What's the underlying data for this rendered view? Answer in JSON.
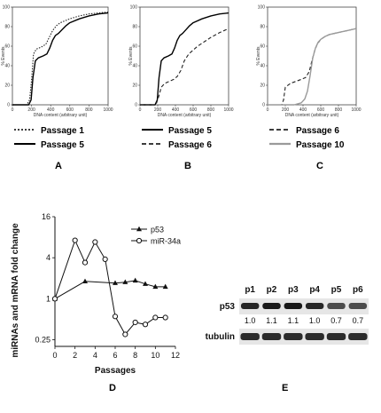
{
  "figure": {
    "panel_letters": [
      "A",
      "B",
      "C",
      "D",
      "E"
    ]
  },
  "chart_data": [
    {
      "panel": "A",
      "type": "line",
      "xlabel": "DNA content (arbitrary unit)",
      "ylabel": "% Events",
      "xlim": [
        0,
        1000
      ],
      "ylim": [
        0,
        100
      ],
      "xticks": [
        0,
        200,
        400,
        600,
        800,
        1000
      ],
      "yticks": [
        0,
        20,
        40,
        60,
        80,
        100
      ],
      "series": [
        {
          "name": "Passage 1",
          "style": "dotted",
          "color": "#222222",
          "x": [
            0,
            150,
            180,
            200,
            220,
            250,
            300,
            350,
            380,
            420,
            460,
            500,
            550,
            600,
            700,
            800,
            900,
            1000
          ],
          "y": [
            0,
            0,
            5,
            25,
            52,
            57,
            59,
            62,
            68,
            76,
            81,
            84,
            86,
            88,
            91,
            93,
            94,
            95
          ]
        },
        {
          "name": "Passage 5",
          "style": "solid",
          "color": "#000000",
          "x": [
            0,
            170,
            195,
            215,
            240,
            270,
            320,
            360,
            390,
            420,
            450,
            480,
            520,
            560,
            600,
            700,
            800,
            900,
            1000
          ],
          "y": [
            0,
            0,
            5,
            28,
            45,
            48,
            50,
            52,
            58,
            66,
            71,
            73,
            77,
            81,
            84,
            88,
            91,
            93,
            94
          ]
        }
      ]
    },
    {
      "panel": "B",
      "type": "line",
      "xlabel": "DNA content (arbitrary unit)",
      "ylabel": "% Events",
      "xlim": [
        0,
        1000
      ],
      "ylim": [
        0,
        100
      ],
      "xticks": [
        0,
        200,
        400,
        600,
        800,
        1000
      ],
      "yticks": [
        0,
        20,
        40,
        60,
        80,
        100
      ],
      "series": [
        {
          "name": "Passage 5",
          "style": "solid",
          "color": "#000000",
          "x": [
            0,
            170,
            195,
            215,
            240,
            270,
            320,
            360,
            390,
            420,
            450,
            480,
            520,
            560,
            600,
            700,
            800,
            900,
            1000
          ],
          "y": [
            0,
            0,
            5,
            28,
            45,
            48,
            50,
            52,
            58,
            66,
            71,
            73,
            77,
            81,
            84,
            88,
            91,
            93,
            94
          ]
        },
        {
          "name": "Passage 6",
          "style": "dashed",
          "color": "#222222",
          "x": [
            0,
            180,
            210,
            240,
            280,
            330,
            380,
            420,
            460,
            500,
            550,
            600,
            650,
            700,
            800,
            900,
            1000
          ],
          "y": [
            0,
            0,
            8,
            18,
            22,
            24,
            26,
            29,
            35,
            45,
            52,
            56,
            60,
            63,
            69,
            74,
            78
          ]
        }
      ]
    },
    {
      "panel": "C",
      "type": "line",
      "xlabel": "DNA content (arbitrary unit)",
      "ylabel": "% Events",
      "xlim": [
        0,
        1000
      ],
      "ylim": [
        0,
        100
      ],
      "xticks": [
        0,
        200,
        400,
        600,
        800,
        1000
      ],
      "yticks": [
        0,
        20,
        40,
        60,
        80,
        100
      ],
      "series": [
        {
          "name": "Passage 6",
          "style": "dashed",
          "color": "#222222",
          "x": [
            0,
            160,
            180,
            200,
            260,
            320,
            380,
            430,
            470,
            500,
            530,
            560,
            600,
            650,
            700,
            800,
            900,
            1000
          ],
          "y": [
            0,
            0,
            5,
            18,
            22,
            24,
            26,
            28,
            34,
            45,
            55,
            62,
            67,
            70,
            72,
            74,
            76,
            78
          ]
        },
        {
          "name": "Passage 10",
          "style": "solid",
          "color": "#9a9a9a",
          "x": [
            0,
            300,
            380,
            420,
            450,
            480,
            510,
            540,
            570,
            600,
            650,
            700,
            800,
            900,
            1000
          ],
          "y": [
            0,
            0,
            2,
            6,
            14,
            30,
            48,
            58,
            64,
            67,
            70,
            72,
            74,
            76,
            78
          ]
        }
      ]
    },
    {
      "panel": "D",
      "type": "line",
      "xlabel": "Passages",
      "ylabel": "miRNAs and mRNA fold change",
      "yscale": "log",
      "xlim": [
        0,
        12
      ],
      "ylim": [
        0.2,
        16
      ],
      "xticks": [
        0,
        2,
        4,
        6,
        8,
        10,
        12
      ],
      "yticks": [
        0.25,
        1,
        4,
        16
      ],
      "ytick_labels": [
        "0.25",
        "1",
        "4",
        "16"
      ],
      "legend_position": "top-right",
      "series": [
        {
          "name": "p53",
          "marker": "filled-triangle",
          "color": "#000000",
          "x": [
            0,
            3,
            6,
            7,
            8,
            9,
            10,
            11
          ],
          "y": [
            1.0,
            1.8,
            1.7,
            1.75,
            1.85,
            1.65,
            1.5,
            1.5
          ]
        },
        {
          "name": "miR-34a",
          "marker": "open-circle",
          "color": "#000000",
          "x": [
            0,
            2,
            3,
            4,
            5,
            6,
            7,
            8,
            9,
            10,
            11
          ],
          "y": [
            1.0,
            7.2,
            3.4,
            6.8,
            3.8,
            0.55,
            0.3,
            0.45,
            0.42,
            0.53,
            0.53
          ]
        }
      ]
    }
  ],
  "blot": {
    "lanes": [
      "p1",
      "p2",
      "p3",
      "p4",
      "p5",
      "p6"
    ],
    "rows": [
      "p53",
      "tubulin"
    ],
    "quantification": [
      "1.0",
      "1.1",
      "1.1",
      "1.0",
      "0.7",
      "0.7"
    ],
    "band_intensity": [
      1.0,
      1.1,
      1.1,
      1.0,
      0.7,
      0.7
    ]
  }
}
